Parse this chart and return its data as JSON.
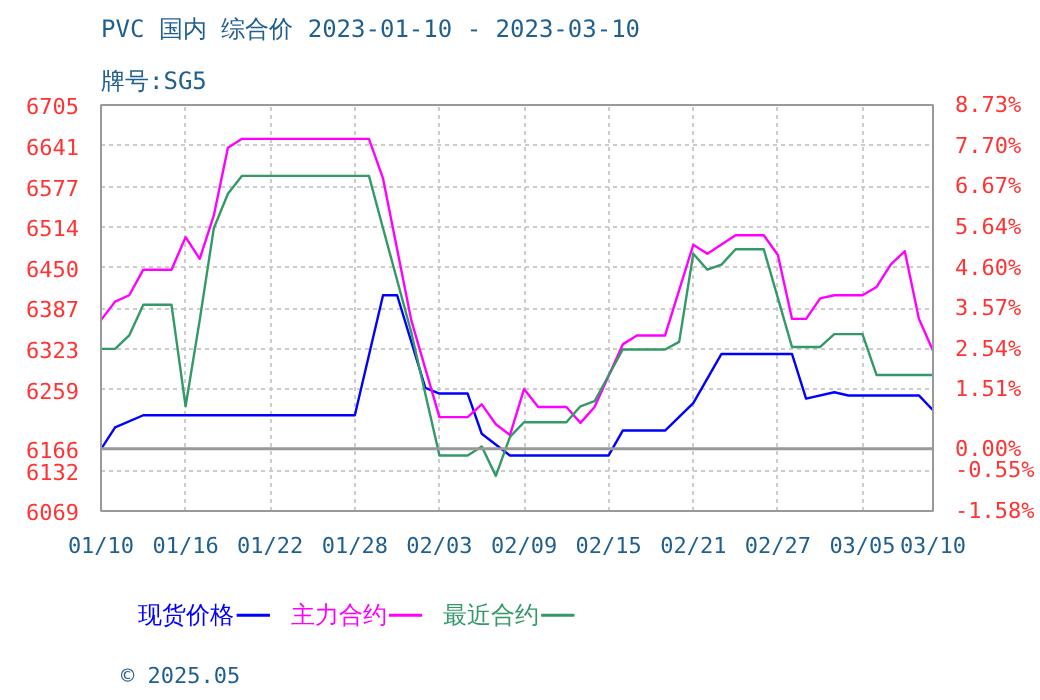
{
  "chart_data": {
    "type": "line",
    "title": "PVC 国内 综合价 2023-01-10 - 2023-03-10",
    "subtitle": "牌号:SG5",
    "series": [
      {
        "name": "现货价格",
        "color": "#0000ff",
        "x": [
          "2023-01-10",
          "2023-01-11",
          "2023-01-13",
          "2023-01-28",
          "2023-01-30",
          "2023-01-31",
          "2023-02-02",
          "2023-02-03",
          "2023-02-05",
          "2023-02-06",
          "2023-02-08",
          "2023-02-15",
          "2023-02-16",
          "2023-02-19",
          "2023-02-21",
          "2023-02-23",
          "2023-02-28",
          "2023-03-01",
          "2023-03-03",
          "2023-03-04",
          "2023-03-09",
          "2023-03-10"
        ],
        "values": [
          6166,
          6200,
          6219,
          6219,
          6407,
          6407,
          6262,
          6253,
          6253,
          6190,
          6156,
          6156,
          6195,
          6195,
          6238,
          6315,
          6315,
          6245,
          6255,
          6250,
          6250,
          6227
        ]
      },
      {
        "name": "主力合约",
        "color": "#ff00ff",
        "x": [
          "2023-01-10",
          "2023-01-11",
          "2023-01-12",
          "2023-01-13",
          "2023-01-15",
          "2023-01-16",
          "2023-01-17",
          "2023-01-18",
          "2023-01-19",
          "2023-01-20",
          "2023-01-29",
          "2023-01-30",
          "2023-02-01",
          "2023-02-03",
          "2023-02-05",
          "2023-02-06",
          "2023-02-07",
          "2023-02-08",
          "2023-02-09",
          "2023-02-10",
          "2023-02-12",
          "2023-02-13",
          "2023-02-14",
          "2023-02-16",
          "2023-02-17",
          "2023-02-19",
          "2023-02-21",
          "2023-02-22",
          "2023-02-24",
          "2023-02-26",
          "2023-02-27",
          "2023-02-28",
          "2023-03-01",
          "2023-03-02",
          "2023-03-03",
          "2023-03-05",
          "2023-03-06",
          "2023-03-07",
          "2023-03-08",
          "2023-03-09",
          "2023-03-10"
        ],
        "values": [
          6368,
          6397,
          6407,
          6447,
          6447,
          6498,
          6464,
          6532,
          6638,
          6652,
          6652,
          6590,
          6368,
          6216,
          6216,
          6236,
          6205,
          6188,
          6260,
          6232,
          6232,
          6207,
          6232,
          6330,
          6344,
          6344,
          6486,
          6472,
          6501,
          6501,
          6470,
          6370,
          6370,
          6402,
          6407,
          6407,
          6420,
          6455,
          6476,
          6370,
          6320
        ]
      },
      {
        "name": "最近合约",
        "color": "#339966",
        "x": [
          "2023-01-10",
          "2023-01-11",
          "2023-01-12",
          "2023-01-13",
          "2023-01-15",
          "2023-01-16",
          "2023-01-17",
          "2023-01-18",
          "2023-01-19",
          "2023-01-20",
          "2023-01-29",
          "2023-01-30",
          "2023-02-01",
          "2023-02-03",
          "2023-02-05",
          "2023-02-06",
          "2023-02-07",
          "2023-02-08",
          "2023-02-09",
          "2023-02-12",
          "2023-02-13",
          "2023-02-14",
          "2023-02-16",
          "2023-02-19",
          "2023-02-20",
          "2023-02-21",
          "2023-02-22",
          "2023-02-23",
          "2023-02-24",
          "2023-02-26",
          "2023-02-28",
          "2023-03-02",
          "2023-03-03",
          "2023-03-05",
          "2023-03-06",
          "2023-03-10"
        ],
        "values": [
          6323,
          6323,
          6344,
          6392,
          6392,
          6233,
          6368,
          6512,
          6566,
          6594,
          6594,
          6512,
          6349,
          6156,
          6156,
          6170,
          6124,
          6185,
          6208,
          6208,
          6233,
          6241,
          6322,
          6322,
          6334,
          6472,
          6447,
          6455,
          6479,
          6479,
          6326,
          6326,
          6346,
          6346,
          6282,
          6282
        ]
      }
    ],
    "xlim": [
      "2023-01-10",
      "2023-03-10"
    ],
    "xticks": [
      {
        "value": "2023-01-10",
        "label": "01/10"
      },
      {
        "value": "2023-01-16",
        "label": "01/16"
      },
      {
        "value": "2023-01-22",
        "label": "01/22"
      },
      {
        "value": "2023-01-28",
        "label": "01/28"
      },
      {
        "value": "2023-02-03",
        "label": "02/03"
      },
      {
        "value": "2023-02-09",
        "label": "02/09"
      },
      {
        "value": "2023-02-15",
        "label": "02/15"
      },
      {
        "value": "2023-02-21",
        "label": "02/21"
      },
      {
        "value": "2023-02-27",
        "label": "02/27"
      },
      {
        "value": "2023-03-05",
        "label": "03/05"
      },
      {
        "value": "2023-03-10",
        "label": "03/10"
      }
    ],
    "ylim": [
      6069,
      6705
    ],
    "yticks": [
      6069,
      6132,
      6166,
      6259,
      6323,
      6387,
      6450,
      6514,
      6577,
      6641,
      6705
    ],
    "y2lim": [
      -1.58,
      8.73
    ],
    "y2ticks": [
      {
        "value": -1.58,
        "label": "-1.58%"
      },
      {
        "value": -0.55,
        "label": "-0.55%"
      },
      {
        "value": 0,
        "label": "0.00%"
      },
      {
        "value": 1.51,
        "label": "1.51%"
      },
      {
        "value": 2.54,
        "label": "2.54%"
      },
      {
        "value": 3.57,
        "label": "3.57%"
      },
      {
        "value": 4.6,
        "label": "4.60%"
      },
      {
        "value": 5.64,
        "label": "5.64%"
      },
      {
        "value": 6.67,
        "label": "6.67%"
      },
      {
        "value": 7.7,
        "label": "7.70%"
      },
      {
        "value": 8.73,
        "label": "8.73%"
      }
    ],
    "ref_lines": [
      {
        "axis": "y2",
        "value": 0,
        "color": "#999999"
      }
    ],
    "grid": true,
    "legend": "bottom",
    "line_style": "solid",
    "marker": "none",
    "annotations": [
      "© 2025.05"
    ]
  }
}
